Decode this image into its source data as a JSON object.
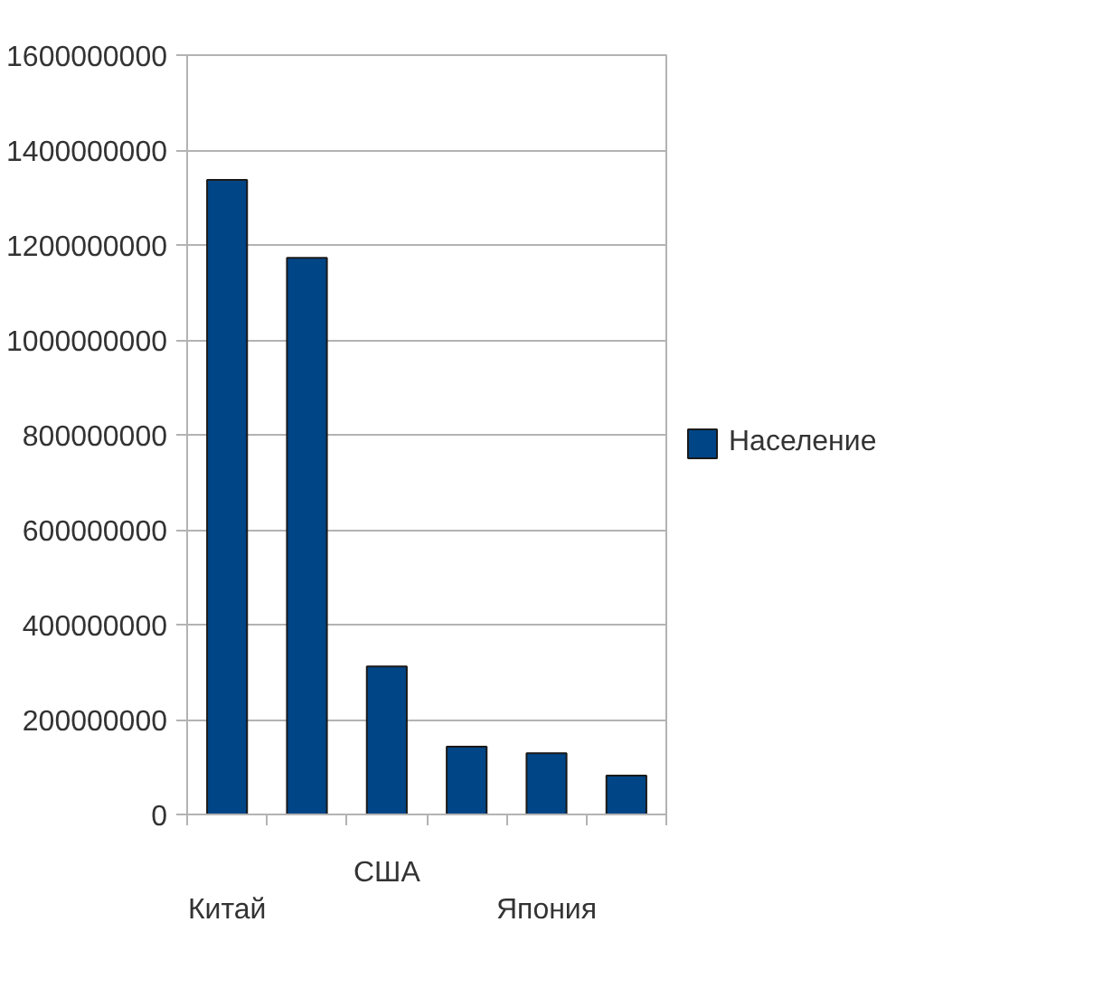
{
  "chart_data": {
    "type": "bar",
    "categories": [
      "Китай",
      null,
      "США",
      null,
      "Япония",
      null
    ],
    "series": [
      {
        "name": "Население",
        "color": "#004586",
        "values": [
          1337000000,
          1173000000,
          312000000,
          143000000,
          129000000,
          82000000
        ]
      }
    ],
    "ylim": [
      0,
      1600000000
    ],
    "yticks": [
      0,
      200000000,
      400000000,
      600000000,
      800000000,
      1000000000,
      1200000000,
      1400000000,
      1600000000
    ],
    "grid": "y",
    "legend": "right"
  }
}
